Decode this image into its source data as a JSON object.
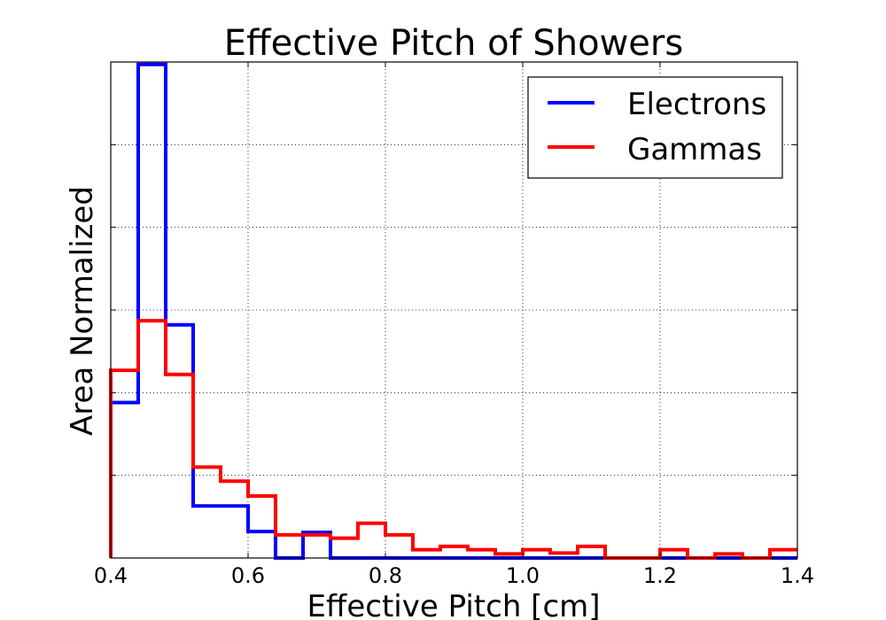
{
  "chart_data": {
    "type": "histogram",
    "title": "Effective Pitch of Showers",
    "xlabel": "Effective Pitch [cm]",
    "ylabel": "Area Normalized",
    "xlim": [
      0.4,
      1.4
    ],
    "ylim": [
      0,
      6
    ],
    "x_ticks": [
      0.4,
      0.6,
      0.8,
      1.0,
      1.2,
      1.4
    ],
    "x_tick_labels": [
      "0.4",
      "0.6",
      "0.8",
      "1.0",
      "1.2",
      "1.4"
    ],
    "y_ticks": [
      1,
      2,
      3,
      4,
      5
    ],
    "y_tick_labels_shown": false,
    "grid": true,
    "legend_position": "top-right",
    "bin_edges": [
      0.4,
      0.44,
      0.48,
      0.52,
      0.56,
      0.6,
      0.64,
      0.68,
      0.72,
      0.76,
      0.8,
      0.84,
      0.88,
      0.92,
      0.96,
      1.0,
      1.04,
      1.08,
      1.12,
      1.16,
      1.2,
      1.24,
      1.28,
      1.32,
      1.36,
      1.4
    ],
    "series": [
      {
        "name": "Electrons",
        "color": "#0000ff",
        "values": [
          1.88,
          5.97,
          2.82,
          0.63,
          0.63,
          0.32,
          0.0,
          0.31,
          0.0,
          0.0,
          0.0,
          0.0,
          0.0,
          0.0,
          0.0,
          0.0,
          0.0,
          0.0,
          0.0,
          0.0,
          0.0,
          0.0,
          0.0,
          0.0,
          0.0
        ]
      },
      {
        "name": "Gammas",
        "color": "#ff0000",
        "values": [
          2.27,
          2.87,
          2.22,
          1.1,
          0.93,
          0.75,
          0.28,
          0.28,
          0.24,
          0.42,
          0.28,
          0.1,
          0.14,
          0.1,
          0.05,
          0.1,
          0.06,
          0.14,
          0.0,
          0.0,
          0.1,
          0.0,
          0.05,
          0.0,
          0.1
        ]
      }
    ]
  }
}
